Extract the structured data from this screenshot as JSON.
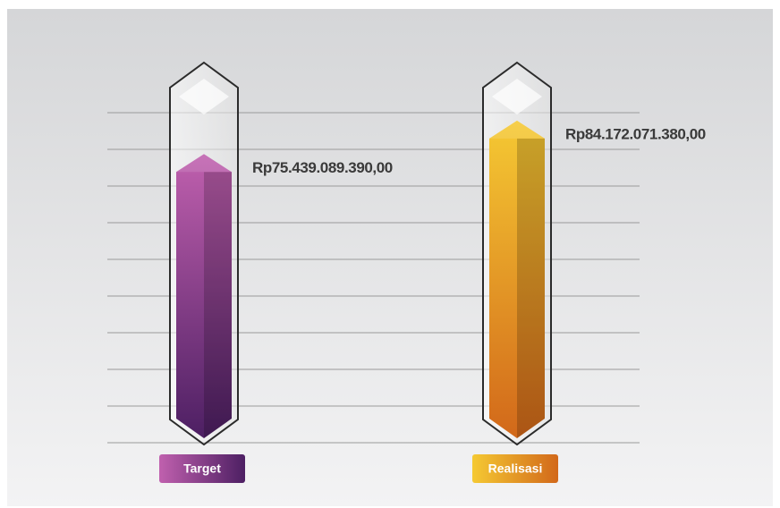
{
  "chart_data": {
    "type": "bar",
    "categories": [
      "Target",
      "Realisasi"
    ],
    "values": [
      75439089390,
      84172071380
    ],
    "value_labels": [
      "Rp75.439.089.390,00",
      "Rp84.172.071.380,00"
    ],
    "colors": [
      [
        "#c060ae",
        "#4d1f63"
      ],
      [
        "#f5c933",
        "#d2681a"
      ]
    ],
    "ylim": [
      0,
      90000000000
    ],
    "grid": true
  }
}
